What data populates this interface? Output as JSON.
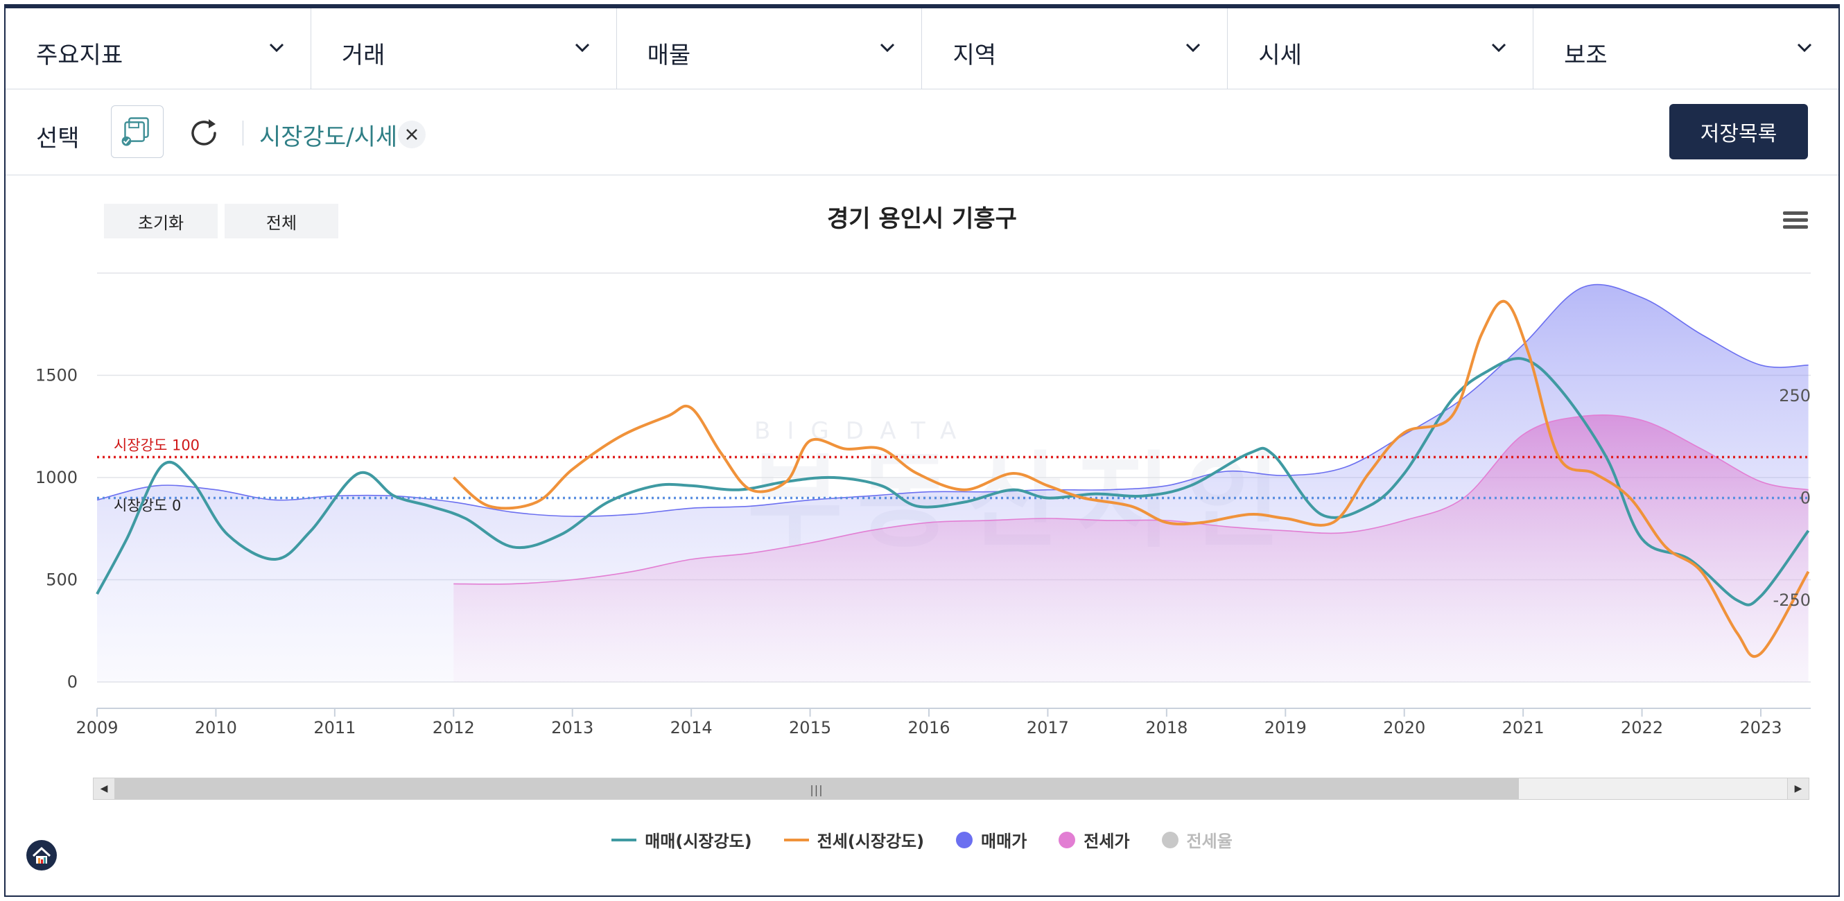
{
  "menu": {
    "items": [
      {
        "label": "주요지표"
      },
      {
        "label": "거래"
      },
      {
        "label": "매물"
      },
      {
        "label": "지역"
      },
      {
        "label": "시세"
      },
      {
        "label": "보조"
      }
    ]
  },
  "toolbar": {
    "select_label": "선택",
    "chip_label": "시장강도/시세",
    "save_list_label": "저장목록",
    "save_icon": "save-settings-icon",
    "refresh_icon": "refresh-icon",
    "close_icon": "close-icon"
  },
  "chart_controls": {
    "reset_label": "초기화",
    "all_label": "전체",
    "menu_icon": "hamburger-icon"
  },
  "watermark": {
    "text": "부동산지인",
    "sub": "BIGDATA"
  },
  "colors": {
    "trade_strength": "#3f9aa2",
    "jeonse_strength": "#f0923a",
    "trade_price": "#6b6ff0",
    "jeonse_price": "#e27ed3",
    "jeonse_ratio": "#c8c8c8",
    "ref_100": "#e02020",
    "ref_0": "#5b8fe0",
    "navy": "#1c2b4a"
  },
  "chart_data": {
    "type": "line",
    "title": "경기 용인시 기흥구",
    "xlabel": "",
    "ylabel": "",
    "x_ticks": [
      "2009",
      "2010",
      "2011",
      "2012",
      "2013",
      "2014",
      "2015",
      "2016",
      "2017",
      "2018",
      "2019",
      "2020",
      "2021",
      "2022",
      "2023"
    ],
    "y_left_ticks": [
      "0",
      "500",
      "1000",
      "1500"
    ],
    "y_left_range": [
      0,
      2000
    ],
    "y_right_ticks": [
      "-250",
      "0",
      "250"
    ],
    "y_right_range": [
      -450,
      550
    ],
    "grid": true,
    "legend_position": "bottom",
    "reference_lines": [
      {
        "label": "시장강도 100",
        "value": 100,
        "axis": "right"
      },
      {
        "label": "시장강도 0",
        "value": 0,
        "axis": "right"
      }
    ],
    "series": [
      {
        "name": "매매가",
        "kind": "area",
        "axis": "left",
        "x": [
          2009,
          2009.5,
          2010,
          2010.5,
          2011,
          2011.5,
          2012,
          2012.5,
          2013,
          2013.5,
          2014,
          2014.5,
          2015,
          2015.5,
          2016,
          2016.5,
          2017,
          2017.5,
          2018,
          2018.5,
          2019,
          2019.5,
          2020,
          2020.5,
          2021,
          2021.5,
          2022,
          2022.5,
          2023,
          2023.4
        ],
        "values": [
          890,
          960,
          940,
          890,
          910,
          910,
          880,
          830,
          810,
          820,
          850,
          860,
          890,
          910,
          930,
          930,
          940,
          940,
          960,
          1030,
          1010,
          1050,
          1210,
          1390,
          1650,
          1930,
          1880,
          1700,
          1550,
          1550
        ]
      },
      {
        "name": "전세가",
        "kind": "area",
        "axis": "left",
        "x": [
          2012,
          2012.5,
          2013,
          2013.5,
          2014,
          2014.5,
          2015,
          2015.5,
          2016,
          2016.5,
          2017,
          2017.5,
          2018,
          2018.5,
          2019,
          2019.5,
          2020,
          2020.5,
          2021,
          2021.5,
          2022,
          2022.5,
          2023,
          2023.4
        ],
        "values": [
          480,
          480,
          500,
          540,
          600,
          630,
          680,
          740,
          780,
          790,
          800,
          790,
          790,
          760,
          740,
          730,
          790,
          900,
          1210,
          1300,
          1280,
          1140,
          980,
          940
        ]
      },
      {
        "name": "매매(시장강도)",
        "kind": "line",
        "axis": "right",
        "x": [
          2009,
          2009.25,
          2009.55,
          2009.8,
          2010.1,
          2010.5,
          2010.8,
          2011.2,
          2011.5,
          2011.8,
          2012.1,
          2012.5,
          2012.9,
          2013.3,
          2013.7,
          2014,
          2014.4,
          2014.8,
          2015.2,
          2015.6,
          2015.9,
          2016.3,
          2016.7,
          2017,
          2017.4,
          2017.8,
          2018.2,
          2018.7,
          2018.9,
          2019.3,
          2019.7,
          2020,
          2020.4,
          2020.7,
          2021,
          2021.3,
          2021.7,
          2022,
          2022.4,
          2022.8,
          2023,
          2023.4
        ],
        "values": [
          -235,
          -100,
          80,
          40,
          -90,
          -150,
          -80,
          60,
          5,
          -20,
          -50,
          -120,
          -90,
          -10,
          30,
          30,
          20,
          40,
          50,
          30,
          -20,
          -10,
          20,
          0,
          10,
          5,
          30,
          110,
          105,
          -40,
          -20,
          60,
          240,
          310,
          340,
          270,
          100,
          -100,
          -150,
          -250,
          -240,
          -80
        ]
      },
      {
        "name": "전세(시장강도)",
        "kind": "line",
        "axis": "right",
        "x": [
          2012,
          2012.3,
          2012.7,
          2013,
          2013.4,
          2013.8,
          2014,
          2014.25,
          2014.5,
          2014.8,
          2015,
          2015.3,
          2015.6,
          2015.9,
          2016.3,
          2016.7,
          2017,
          2017.3,
          2017.7,
          2018,
          2018.3,
          2018.7,
          2019,
          2019.4,
          2019.7,
          2020,
          2020.4,
          2020.65,
          2020.85,
          2021.05,
          2021.3,
          2021.6,
          2021.9,
          2022.2,
          2022.5,
          2022.8,
          2023,
          2023.4
        ],
        "values": [
          50,
          -20,
          -10,
          70,
          150,
          200,
          220,
          110,
          20,
          40,
          140,
          120,
          120,
          60,
          20,
          60,
          30,
          0,
          -20,
          -60,
          -60,
          -40,
          -50,
          -60,
          60,
          160,
          200,
          400,
          480,
          350,
          100,
          60,
          0,
          -120,
          -180,
          -330,
          -380,
          -180
        ]
      },
      {
        "name": "전세율",
        "kind": "line",
        "axis": "left",
        "visible": false,
        "x": [],
        "values": []
      }
    ]
  }
}
